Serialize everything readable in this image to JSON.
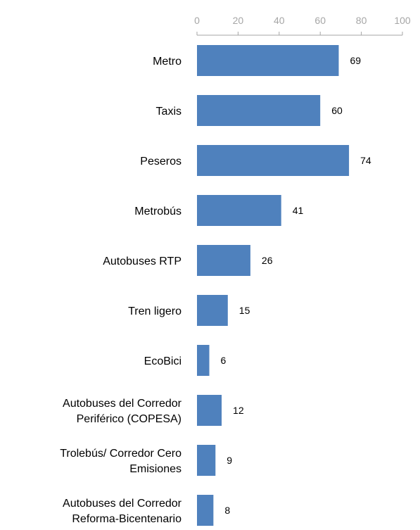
{
  "colors": {
    "bar": "#4f81bd",
    "axis": "#a6a6a6",
    "text": "#000000"
  },
  "chart_data": {
    "type": "bar",
    "orientation": "horizontal",
    "title": "",
    "xlabel": "",
    "ylabel": "",
    "xlim": [
      0,
      100
    ],
    "x_ticks": [
      "0",
      "20",
      "40",
      "60",
      "80",
      "100"
    ],
    "axis_position": "top",
    "grid": false,
    "legend": "none",
    "categories": [
      [
        "Metro"
      ],
      [
        "Taxis"
      ],
      [
        "Peseros"
      ],
      [
        "Metrobús"
      ],
      [
        "Autobuses RTP"
      ],
      [
        "Tren ligero"
      ],
      [
        "EcoBici"
      ],
      [
        "Autobuses del Corredor",
        "Periférico (COPESA)"
      ],
      [
        "Trolebús/ Corredor Cero",
        "Emisiones"
      ],
      [
        "Autobuses del Corredor",
        "Reforma-Bicentenario"
      ]
    ],
    "values": [
      69,
      60,
      74,
      41,
      26,
      15,
      6,
      12,
      9,
      8
    ],
    "value_labels": [
      "69",
      "60",
      "74",
      "41",
      "26",
      "15",
      "6",
      "12",
      "9",
      "8"
    ]
  }
}
